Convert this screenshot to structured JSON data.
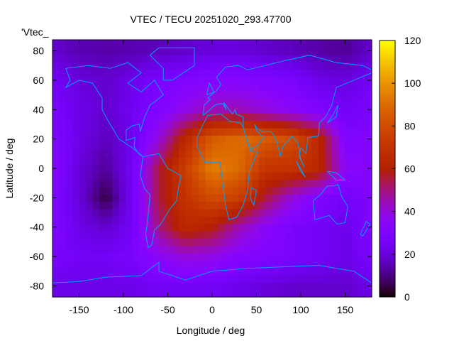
{
  "chart_data": {
    "type": "heatmap",
    "title": "VTEC / TECU 20251020_293.47700",
    "xlabel": "Longitude / deg",
    "ylabel": "Latitude / deg",
    "key_label": "'Vtec_",
    "xlim": [
      -180,
      180
    ],
    "ylim": [
      -87.5,
      87.5
    ],
    "zlim": [
      0,
      120
    ],
    "xticks": [
      "-150",
      "-100",
      "-50",
      "0",
      "50",
      "100",
      "150"
    ],
    "yticks": [
      "-80",
      "-60",
      "-40",
      "-20",
      "0",
      "20",
      "40",
      "60",
      "80"
    ],
    "cbticks": [
      "0",
      "20",
      "40",
      "60",
      "80",
      "100",
      "120"
    ],
    "grid_lon": [
      -180,
      -150,
      -120,
      -90,
      -60,
      -30,
      0,
      30,
      60,
      90,
      120,
      150,
      180
    ],
    "grid_lat": [
      80,
      60,
      40,
      20,
      0,
      -20,
      -40,
      -60,
      -80
    ],
    "values": [
      [
        18,
        15,
        14,
        15,
        16,
        18,
        20,
        20,
        18,
        16,
        14,
        12,
        18
      ],
      [
        25,
        20,
        18,
        22,
        28,
        30,
        32,
        32,
        30,
        28,
        22,
        20,
        25
      ],
      [
        28,
        22,
        18,
        24,
        30,
        38,
        45,
        45,
        40,
        35,
        30,
        25,
        28
      ],
      [
        30,
        22,
        16,
        22,
        40,
        65,
        85,
        90,
        85,
        80,
        65,
        30,
        30
      ],
      [
        32,
        20,
        12,
        25,
        55,
        75,
        95,
        90,
        70,
        70,
        65,
        35,
        32
      ],
      [
        30,
        20,
        5,
        25,
        55,
        70,
        80,
        75,
        55,
        40,
        30,
        25,
        30
      ],
      [
        30,
        22,
        18,
        25,
        50,
        65,
        60,
        45,
        35,
        28,
        25,
        22,
        30
      ],
      [
        28,
        25,
        25,
        28,
        35,
        40,
        38,
        32,
        30,
        28,
        25,
        22,
        28
      ],
      [
        22,
        22,
        22,
        22,
        25,
        25,
        25,
        22,
        20,
        18,
        18,
        18,
        22
      ]
    ],
    "colormap": "black-purple-red-orange-yellow",
    "coastline_color": "#00a0ff",
    "legend": "top-left"
  }
}
